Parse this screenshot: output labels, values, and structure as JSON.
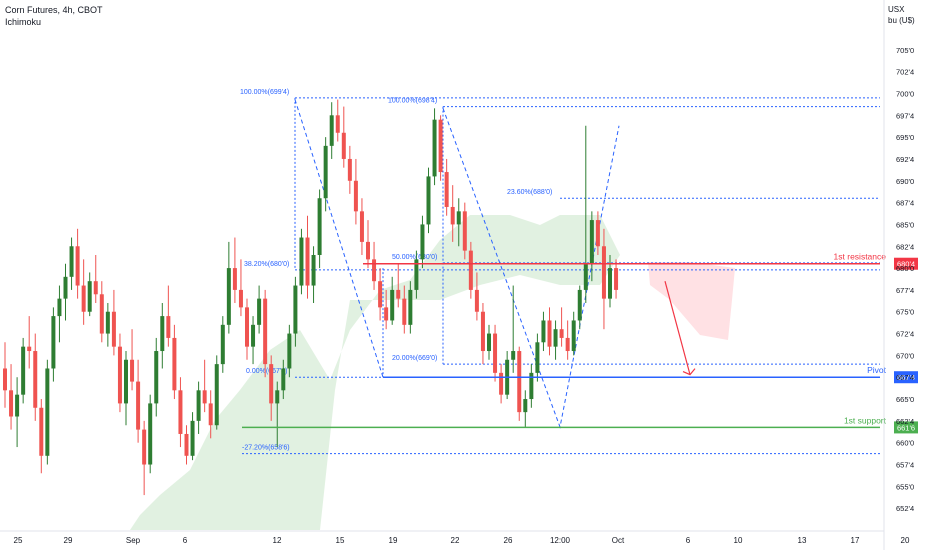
{
  "header": {
    "title": "Corn Futures, 4h, CBOT",
    "indicator": "Ichimoku"
  },
  "axis_unit": [
    "USX",
    "bu (U$)"
  ],
  "colors": {
    "up": "#2e7d32",
    "down": "#ef5350",
    "fib": "#2962ff",
    "resistance": "#f23645",
    "pivot": "#2962ff",
    "support": "#4caf50",
    "cloud_green": "#c8e6c9",
    "cloud_red": "#ffcdd2"
  },
  "chart_data": {
    "type": "candlestick",
    "title": "Corn Futures, 4h, CBOT",
    "y_unit": "USX / bu",
    "ylim": [
      650,
      707.5
    ],
    "y_ticks": [
      "652'4",
      "655'0",
      "657'4",
      "660'0",
      "662'4",
      "665'0",
      "667'4",
      "670'0",
      "672'4",
      "675'0",
      "677'4",
      "680'0",
      "682'4",
      "685'0",
      "687'4",
      "690'0",
      "692'4",
      "695'0",
      "697'4",
      "700'0",
      "702'4",
      "705'0"
    ],
    "x_ticks": [
      "25",
      "29",
      "Sep",
      "6",
      "12",
      "15",
      "19",
      "22",
      "26",
      "12:00",
      "Oct",
      "6",
      "10",
      "13",
      "17",
      "20"
    ],
    "candles": [
      {
        "o": 668.5,
        "h": 671.5,
        "l": 664.0,
        "c": 666.0
      },
      {
        "o": 666.0,
        "h": 669.0,
        "l": 661.5,
        "c": 663.0
      },
      {
        "o": 663.0,
        "h": 667.5,
        "l": 659.5,
        "c": 665.5
      },
      {
        "o": 665.5,
        "h": 672.0,
        "l": 664.5,
        "c": 671.0
      },
      {
        "o": 671.0,
        "h": 674.5,
        "l": 668.5,
        "c": 670.5
      },
      {
        "o": 670.5,
        "h": 672.5,
        "l": 662.5,
        "c": 664.0
      },
      {
        "o": 664.0,
        "h": 665.0,
        "l": 656.5,
        "c": 658.5
      },
      {
        "o": 658.5,
        "h": 669.5,
        "l": 657.5,
        "c": 668.5
      },
      {
        "o": 668.5,
        "h": 675.5,
        "l": 667.0,
        "c": 674.5
      },
      {
        "o": 674.5,
        "h": 678.0,
        "l": 671.5,
        "c": 676.5
      },
      {
        "o": 676.5,
        "h": 680.5,
        "l": 674.0,
        "c": 679.0
      },
      {
        "o": 679.0,
        "h": 683.5,
        "l": 677.5,
        "c": 682.5
      },
      {
        "o": 682.5,
        "h": 684.5,
        "l": 676.5,
        "c": 678.0
      },
      {
        "o": 678.0,
        "h": 681.0,
        "l": 673.5,
        "c": 675.0
      },
      {
        "o": 675.0,
        "h": 679.5,
        "l": 674.5,
        "c": 678.5
      },
      {
        "o": 678.5,
        "h": 681.5,
        "l": 676.0,
        "c": 677.0
      },
      {
        "o": 677.0,
        "h": 678.5,
        "l": 671.5,
        "c": 672.5
      },
      {
        "o": 672.5,
        "h": 676.0,
        "l": 671.0,
        "c": 675.0
      },
      {
        "o": 675.0,
        "h": 677.5,
        "l": 670.0,
        "c": 671.0
      },
      {
        "o": 671.0,
        "h": 672.5,
        "l": 663.5,
        "c": 664.5
      },
      {
        "o": 664.5,
        "h": 670.5,
        "l": 662.0,
        "c": 669.5
      },
      {
        "o": 669.5,
        "h": 673.0,
        "l": 666.0,
        "c": 667.0
      },
      {
        "o": 667.0,
        "h": 669.5,
        "l": 660.0,
        "c": 661.5
      },
      {
        "o": 661.5,
        "h": 662.5,
        "l": 654.0,
        "c": 657.5
      },
      {
        "o": 657.5,
        "h": 665.5,
        "l": 656.5,
        "c": 664.5
      },
      {
        "o": 664.5,
        "h": 672.0,
        "l": 663.0,
        "c": 670.5
      },
      {
        "o": 670.5,
        "h": 676.0,
        "l": 668.5,
        "c": 674.5
      },
      {
        "o": 674.5,
        "h": 678.0,
        "l": 671.0,
        "c": 672.0
      },
      {
        "o": 672.0,
        "h": 673.5,
        "l": 665.0,
        "c": 666.0
      },
      {
        "o": 666.0,
        "h": 667.5,
        "l": 659.5,
        "c": 661.0
      },
      {
        "o": 661.0,
        "h": 662.0,
        "l": 657.5,
        "c": 658.5
      },
      {
        "o": 658.5,
        "h": 663.5,
        "l": 658.0,
        "c": 662.5
      },
      {
        "o": 662.5,
        "h": 667.0,
        "l": 661.0,
        "c": 666.0
      },
      {
        "o": 666.0,
        "h": 669.5,
        "l": 663.5,
        "c": 664.5
      },
      {
        "o": 664.5,
        "h": 666.0,
        "l": 660.5,
        "c": 662.0
      },
      {
        "o": 662.0,
        "h": 670.0,
        "l": 661.5,
        "c": 669.0
      },
      {
        "o": 669.0,
        "h": 674.5,
        "l": 668.0,
        "c": 673.5
      },
      {
        "o": 673.5,
        "h": 683.0,
        "l": 672.5,
        "c": 680.0
      },
      {
        "o": 680.0,
        "h": 683.5,
        "l": 676.0,
        "c": 677.5
      },
      {
        "o": 677.5,
        "h": 681.0,
        "l": 674.5,
        "c": 675.5
      },
      {
        "o": 675.5,
        "h": 676.5,
        "l": 669.5,
        "c": 671.0
      },
      {
        "o": 671.0,
        "h": 674.5,
        "l": 669.0,
        "c": 673.5
      },
      {
        "o": 673.5,
        "h": 678.0,
        "l": 672.5,
        "c": 676.5
      },
      {
        "o": 676.5,
        "h": 677.5,
        "l": 667.5,
        "c": 669.0
      },
      {
        "o": 669.0,
        "h": 670.0,
        "l": 662.5,
        "c": 664.5
      },
      {
        "o": 664.5,
        "h": 667.0,
        "l": 659.5,
        "c": 666.0
      },
      {
        "o": 666.0,
        "h": 669.5,
        "l": 665.0,
        "c": 668.5
      },
      {
        "o": 668.5,
        "h": 673.5,
        "l": 667.5,
        "c": 672.5
      },
      {
        "o": 672.5,
        "h": 679.0,
        "l": 671.0,
        "c": 678.0
      },
      {
        "o": 678.0,
        "h": 684.5,
        "l": 677.0,
        "c": 683.5
      },
      {
        "o": 683.5,
        "h": 686.0,
        "l": 676.5,
        "c": 678.0
      },
      {
        "o": 678.0,
        "h": 682.5,
        "l": 676.0,
        "c": 681.5
      },
      {
        "o": 681.5,
        "h": 689.0,
        "l": 680.0,
        "c": 688.0
      },
      {
        "o": 688.0,
        "h": 695.0,
        "l": 686.5,
        "c": 694.0
      },
      {
        "o": 694.0,
        "h": 699.0,
        "l": 692.5,
        "c": 697.5
      },
      {
        "o": 697.5,
        "h": 699.3,
        "l": 694.5,
        "c": 695.5
      },
      {
        "o": 695.5,
        "h": 698.5,
        "l": 691.5,
        "c": 692.5
      },
      {
        "o": 692.5,
        "h": 694.0,
        "l": 688.5,
        "c": 690.0
      },
      {
        "o": 690.0,
        "h": 692.5,
        "l": 685.0,
        "c": 686.5
      },
      {
        "o": 686.5,
        "h": 688.0,
        "l": 681.5,
        "c": 683.0
      },
      {
        "o": 683.0,
        "h": 685.5,
        "l": 680.0,
        "c": 681.0
      },
      {
        "o": 681.0,
        "h": 683.0,
        "l": 677.5,
        "c": 678.5
      },
      {
        "o": 678.5,
        "h": 680.0,
        "l": 674.0,
        "c": 675.5
      },
      {
        "o": 675.5,
        "h": 677.5,
        "l": 673.0,
        "c": 674.0
      },
      {
        "o": 674.0,
        "h": 679.0,
        "l": 673.5,
        "c": 677.5
      },
      {
        "o": 677.5,
        "h": 680.5,
        "l": 675.5,
        "c": 676.5
      },
      {
        "o": 676.5,
        "h": 678.0,
        "l": 672.5,
        "c": 673.5
      },
      {
        "o": 673.5,
        "h": 678.5,
        "l": 672.5,
        "c": 677.5
      },
      {
        "o": 677.5,
        "h": 682.0,
        "l": 676.5,
        "c": 681.0
      },
      {
        "o": 681.0,
        "h": 686.0,
        "l": 680.0,
        "c": 685.0
      },
      {
        "o": 685.0,
        "h": 691.5,
        "l": 684.0,
        "c": 690.5
      },
      {
        "o": 690.5,
        "h": 698.3,
        "l": 689.5,
        "c": 697.0
      },
      {
        "o": 697.0,
        "h": 697.5,
        "l": 690.0,
        "c": 691.0
      },
      {
        "o": 691.0,
        "h": 692.5,
        "l": 686.0,
        "c": 687.0
      },
      {
        "o": 687.0,
        "h": 689.5,
        "l": 683.0,
        "c": 685.0
      },
      {
        "o": 685.0,
        "h": 688.0,
        "l": 682.5,
        "c": 686.5
      },
      {
        "o": 686.5,
        "h": 687.5,
        "l": 681.0,
        "c": 682.0
      },
      {
        "o": 682.0,
        "h": 683.0,
        "l": 676.5,
        "c": 677.5
      },
      {
        "o": 677.5,
        "h": 679.5,
        "l": 674.0,
        "c": 675.0
      },
      {
        "o": 675.0,
        "h": 676.0,
        "l": 669.0,
        "c": 670.5
      },
      {
        "o": 670.5,
        "h": 673.5,
        "l": 669.5,
        "c": 672.5
      },
      {
        "o": 672.5,
        "h": 673.5,
        "l": 667.0,
        "c": 668.0
      },
      {
        "o": 668.0,
        "h": 669.0,
        "l": 664.5,
        "c": 665.5
      },
      {
        "o": 665.5,
        "h": 670.5,
        "l": 665.0,
        "c": 669.5
      },
      {
        "o": 669.5,
        "h": 678.0,
        "l": 668.0,
        "c": 670.5
      },
      {
        "o": 670.5,
        "h": 671.0,
        "l": 662.5,
        "c": 663.5
      },
      {
        "o": 663.5,
        "h": 666.0,
        "l": 661.8,
        "c": 665.0
      },
      {
        "o": 665.0,
        "h": 669.0,
        "l": 664.0,
        "c": 668.0
      },
      {
        "o": 668.0,
        "h": 672.5,
        "l": 667.0,
        "c": 671.5
      },
      {
        "o": 671.5,
        "h": 675.0,
        "l": 670.5,
        "c": 674.0
      },
      {
        "o": 674.0,
        "h": 675.5,
        "l": 670.0,
        "c": 671.0
      },
      {
        "o": 671.0,
        "h": 674.0,
        "l": 669.5,
        "c": 673.0
      },
      {
        "o": 673.0,
        "h": 675.5,
        "l": 671.0,
        "c": 672.0
      },
      {
        "o": 672.0,
        "h": 674.0,
        "l": 669.5,
        "c": 670.5
      },
      {
        "o": 670.5,
        "h": 675.0,
        "l": 670.0,
        "c": 674.0
      },
      {
        "o": 674.0,
        "h": 678.0,
        "l": 673.0,
        "c": 677.5
      },
      {
        "o": 677.5,
        "h": 696.3,
        "l": 676.0,
        "c": 680.5
      },
      {
        "o": 680.5,
        "h": 686.5,
        "l": 678.5,
        "c": 685.5
      },
      {
        "o": 685.5,
        "h": 686.5,
        "l": 681.5,
        "c": 682.5
      },
      {
        "o": 682.5,
        "h": 684.5,
        "l": 673.0,
        "c": 676.5
      },
      {
        "o": 676.5,
        "h": 681.5,
        "l": 675.5,
        "c": 680.0
      },
      {
        "o": 680.0,
        "h": 681.0,
        "l": 676.5,
        "c": 677.5
      }
    ],
    "fib_levels": [
      {
        "label": "100.00%(699'4)",
        "value": 699.5
      },
      {
        "label": "100.00%(698'4)",
        "value": 698.5
      },
      {
        "label": "23.60%(688'0)",
        "value": 688.0
      },
      {
        "label": "38.20%(680'0)",
        "value": 679.8
      },
      {
        "label": "50.00%(680'0)",
        "value": 680.6
      },
      {
        "label": "20.00%(669'0)",
        "value": 669.0
      },
      {
        "label": "0.00%(667'4)",
        "value": 667.5
      },
      {
        "label": "-27.20%(658'6)",
        "value": 658.75
      }
    ],
    "levels": [
      {
        "name": "1st resistance",
        "tag": "680'4",
        "value": 680.5
      },
      {
        "name": "Pivot",
        "tag": "667'4",
        "value": 667.5
      },
      {
        "name": "1st support",
        "tag": "661'6",
        "value": 661.75
      }
    ],
    "projection_target": 667.8
  }
}
